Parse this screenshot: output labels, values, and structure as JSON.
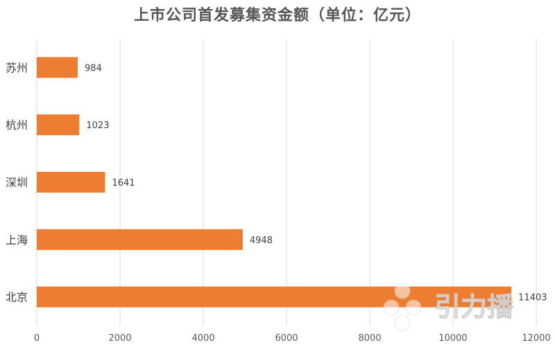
{
  "chart_data": {
    "type": "bar",
    "orientation": "horizontal",
    "title": "上市公司首发募集资金额（单位：亿元）",
    "categories": [
      "苏州",
      "杭州",
      "深圳",
      "上海",
      "北京"
    ],
    "values": [
      984,
      1023,
      1641,
      4948,
      11403
    ],
    "data_labels": [
      "984",
      "1023",
      "1641",
      "4948",
      "11403"
    ],
    "xlim": [
      0,
      12000
    ],
    "x_ticks": [
      "0",
      "2000",
      "4000",
      "6000",
      "8000",
      "10000",
      "12000"
    ],
    "xlabel": "",
    "ylabel": "",
    "grid": "vertical",
    "legend": "none",
    "bar_color": "#ED7D31"
  },
  "watermark": {
    "text": "引力播"
  }
}
